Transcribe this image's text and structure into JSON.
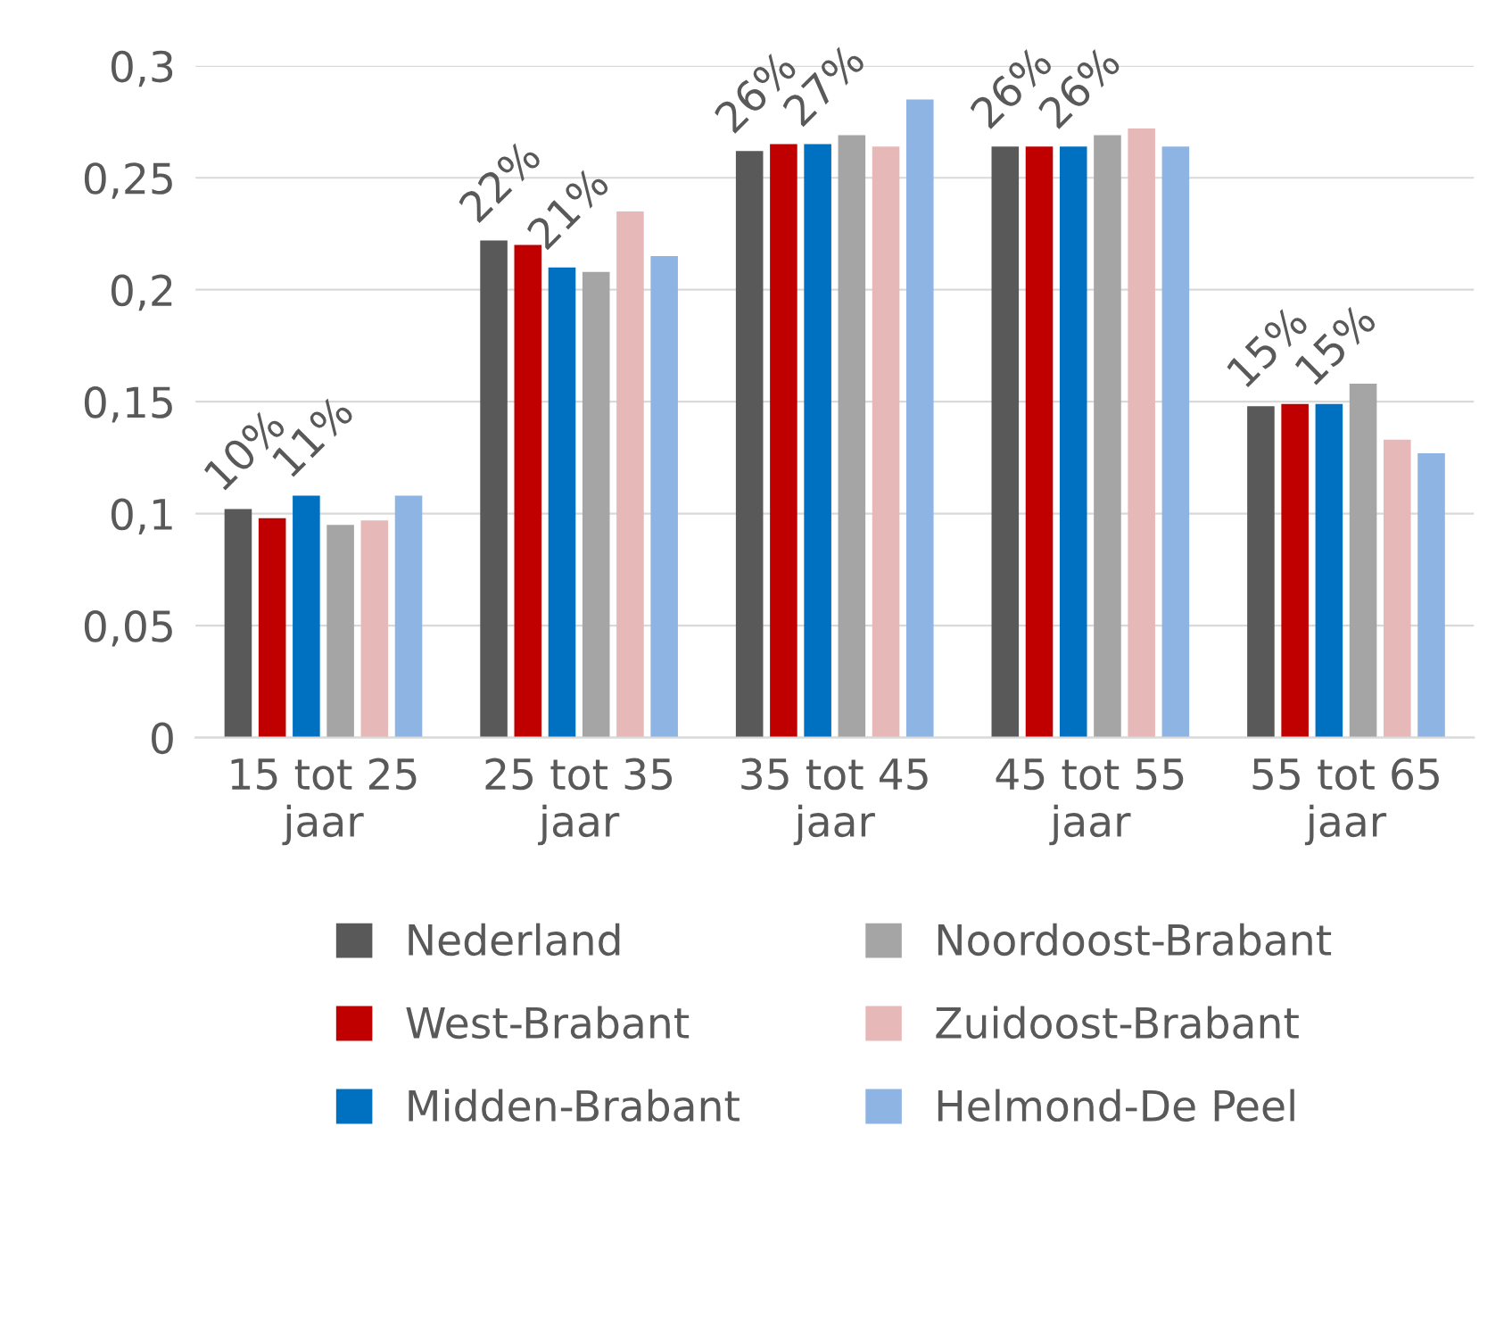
{
  "chart_data": {
    "type": "bar",
    "categories": [
      "15 tot 25\njaar",
      "25 tot 35\njaar",
      "35 tot 45\njaar",
      "45 tot 55\njaar",
      "55 tot 65\njaar"
    ],
    "series": [
      {
        "name": "Nederland",
        "color": "#595959",
        "values": [
          0.102,
          0.222,
          0.262,
          0.264,
          0.148
        ],
        "value_labels": [
          "10%",
          "22%",
          "26%",
          "26%",
          "15%"
        ]
      },
      {
        "name": "West-Brabant",
        "color": "#c00000",
        "values": [
          0.098,
          0.22,
          0.265,
          0.264,
          0.149
        ]
      },
      {
        "name": "Midden-Brabant",
        "color": "#0070c0",
        "values": [
          0.108,
          0.21,
          0.265,
          0.264,
          0.149
        ],
        "value_labels": [
          "11%",
          "21%",
          "27%",
          "26%",
          "15%"
        ]
      },
      {
        "name": "Noordoost-Brabant",
        "color": "#a5a5a5",
        "values": [
          0.095,
          0.208,
          0.269,
          0.269,
          0.158
        ]
      },
      {
        "name": "Zuidoost-Brabant",
        "color": "#e6b9b8",
        "values": [
          0.097,
          0.235,
          0.264,
          0.272,
          0.133
        ]
      },
      {
        "name": "Helmond-De Peel",
        "color": "#8eb4e3",
        "values": [
          0.108,
          0.215,
          0.285,
          0.264,
          0.127
        ]
      }
    ],
    "ylim": [
      0,
      0.3
    ],
    "yticks": [
      {
        "value": 0,
        "label": "0"
      },
      {
        "value": 0.05,
        "label": "0,05"
      },
      {
        "value": 0.1,
        "label": "0,1"
      },
      {
        "value": 0.15,
        "label": "0,15"
      },
      {
        "value": 0.2,
        "label": "0,2"
      },
      {
        "value": 0.25,
        "label": "0,25"
      },
      {
        "value": 0.3,
        "label": "0,3"
      }
    ],
    "grid": "y",
    "legend": "bottom"
  }
}
